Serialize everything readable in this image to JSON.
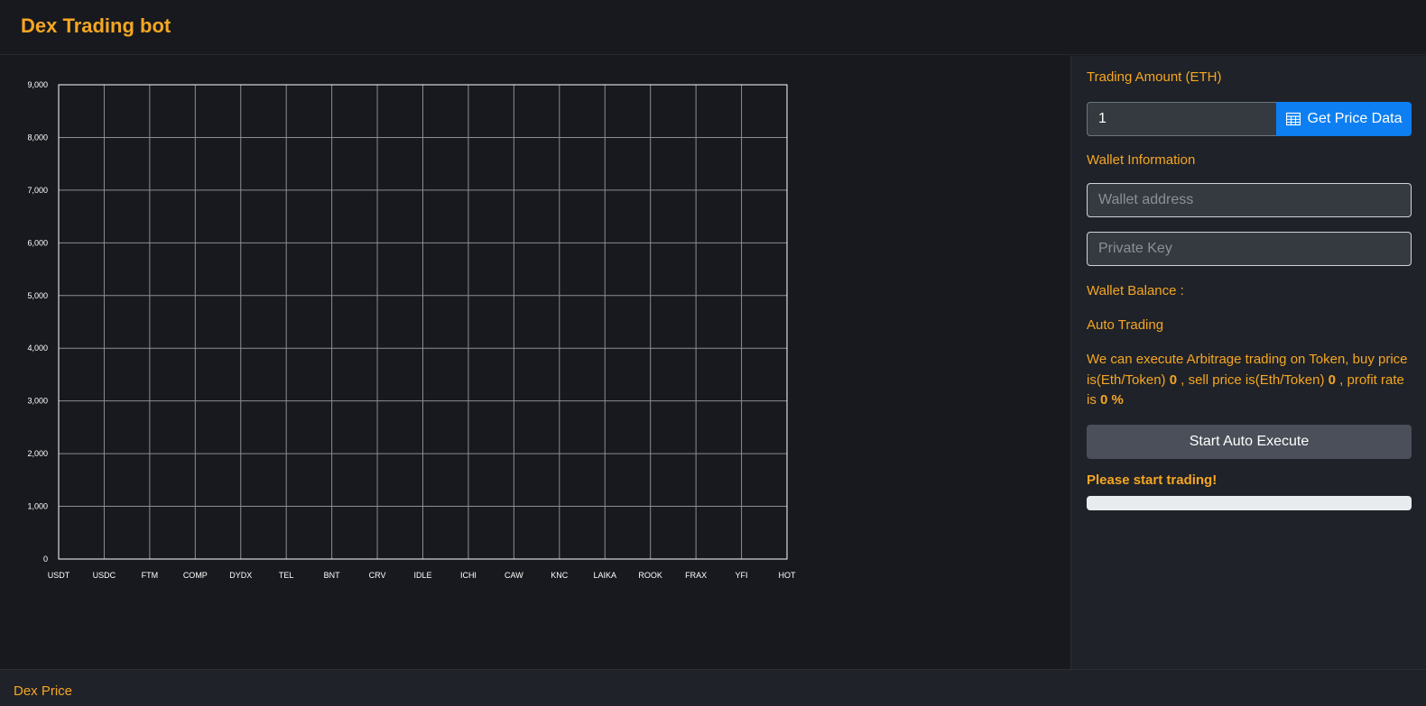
{
  "header": {
    "title": "Dex Trading bot"
  },
  "chart_data": {
    "type": "line",
    "categories": [
      "USDT",
      "USDC",
      "FTM",
      "COMP",
      "DYDX",
      "TEL",
      "BNT",
      "CRV",
      "IDLE",
      "ICHI",
      "CAW",
      "KNC",
      "LAIKA",
      "ROOK",
      "FRAX",
      "YFI",
      "HOT"
    ],
    "series": [],
    "y_ticks": [
      "0",
      "1,000",
      "2,000",
      "3,000",
      "4,000",
      "5,000",
      "6,000",
      "7,000",
      "8,000",
      "9,000"
    ],
    "ylim": [
      0,
      9000
    ],
    "grid": true,
    "title": "",
    "xlabel": "",
    "ylabel": ""
  },
  "panel": {
    "trading_amount_label": "Trading Amount (ETH)",
    "trading_amount_value": "1",
    "get_price_label": "Get Price Data",
    "wallet_info_label": "Wallet Information",
    "wallet_address_placeholder": "Wallet address",
    "private_key_placeholder": "Private Key",
    "wallet_balance_label": "Wallet Balance :",
    "auto_trading_label": "Auto Trading",
    "arb_prefix": "We can execute Arbitrage trading on Token, buy price is(Eth/Token)",
    "buy_price": "0",
    "arb_mid": ", sell price is(Eth/Token)",
    "sell_price": "0",
    "arb_suffix": ", profit rate is",
    "profit_rate": "0 %",
    "auto_execute_label": "Start Auto Execute",
    "status": "Please start trading!",
    "progress": 0
  },
  "footer": {
    "label": "Dex Price"
  }
}
